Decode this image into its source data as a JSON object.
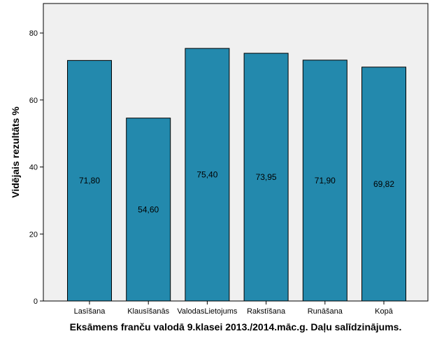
{
  "chart_data": {
    "type": "bar",
    "title": "",
    "xlabel": "Eksāmens franču valodā 9.klasei 2013./2014.māc.g. Daļu salīdzinājums.",
    "ylabel": "Vidējais rezultāts %",
    "categories": [
      "Lasīšana",
      "Klausīšanās",
      "ValodasLietojums",
      "Rakstīšana",
      "Runāšana",
      "Kopā"
    ],
    "values": [
      71.8,
      54.6,
      75.4,
      73.95,
      71.9,
      69.82
    ],
    "data_labels": [
      "71,80",
      "54,60",
      "75,40",
      "73,95",
      "71,90",
      "69,82"
    ],
    "yticks": [
      0,
      20,
      40,
      60,
      80
    ],
    "ytick_labels": [
      "0",
      "20",
      "40",
      "60",
      "80"
    ],
    "ylim": [
      0,
      88.8
    ],
    "grid": false,
    "legend": "none",
    "colors": {
      "bar_fill": "#2389AD",
      "bar_stroke": "#000000",
      "plot_background": "#F0F0F0",
      "axis": "#000000"
    }
  }
}
